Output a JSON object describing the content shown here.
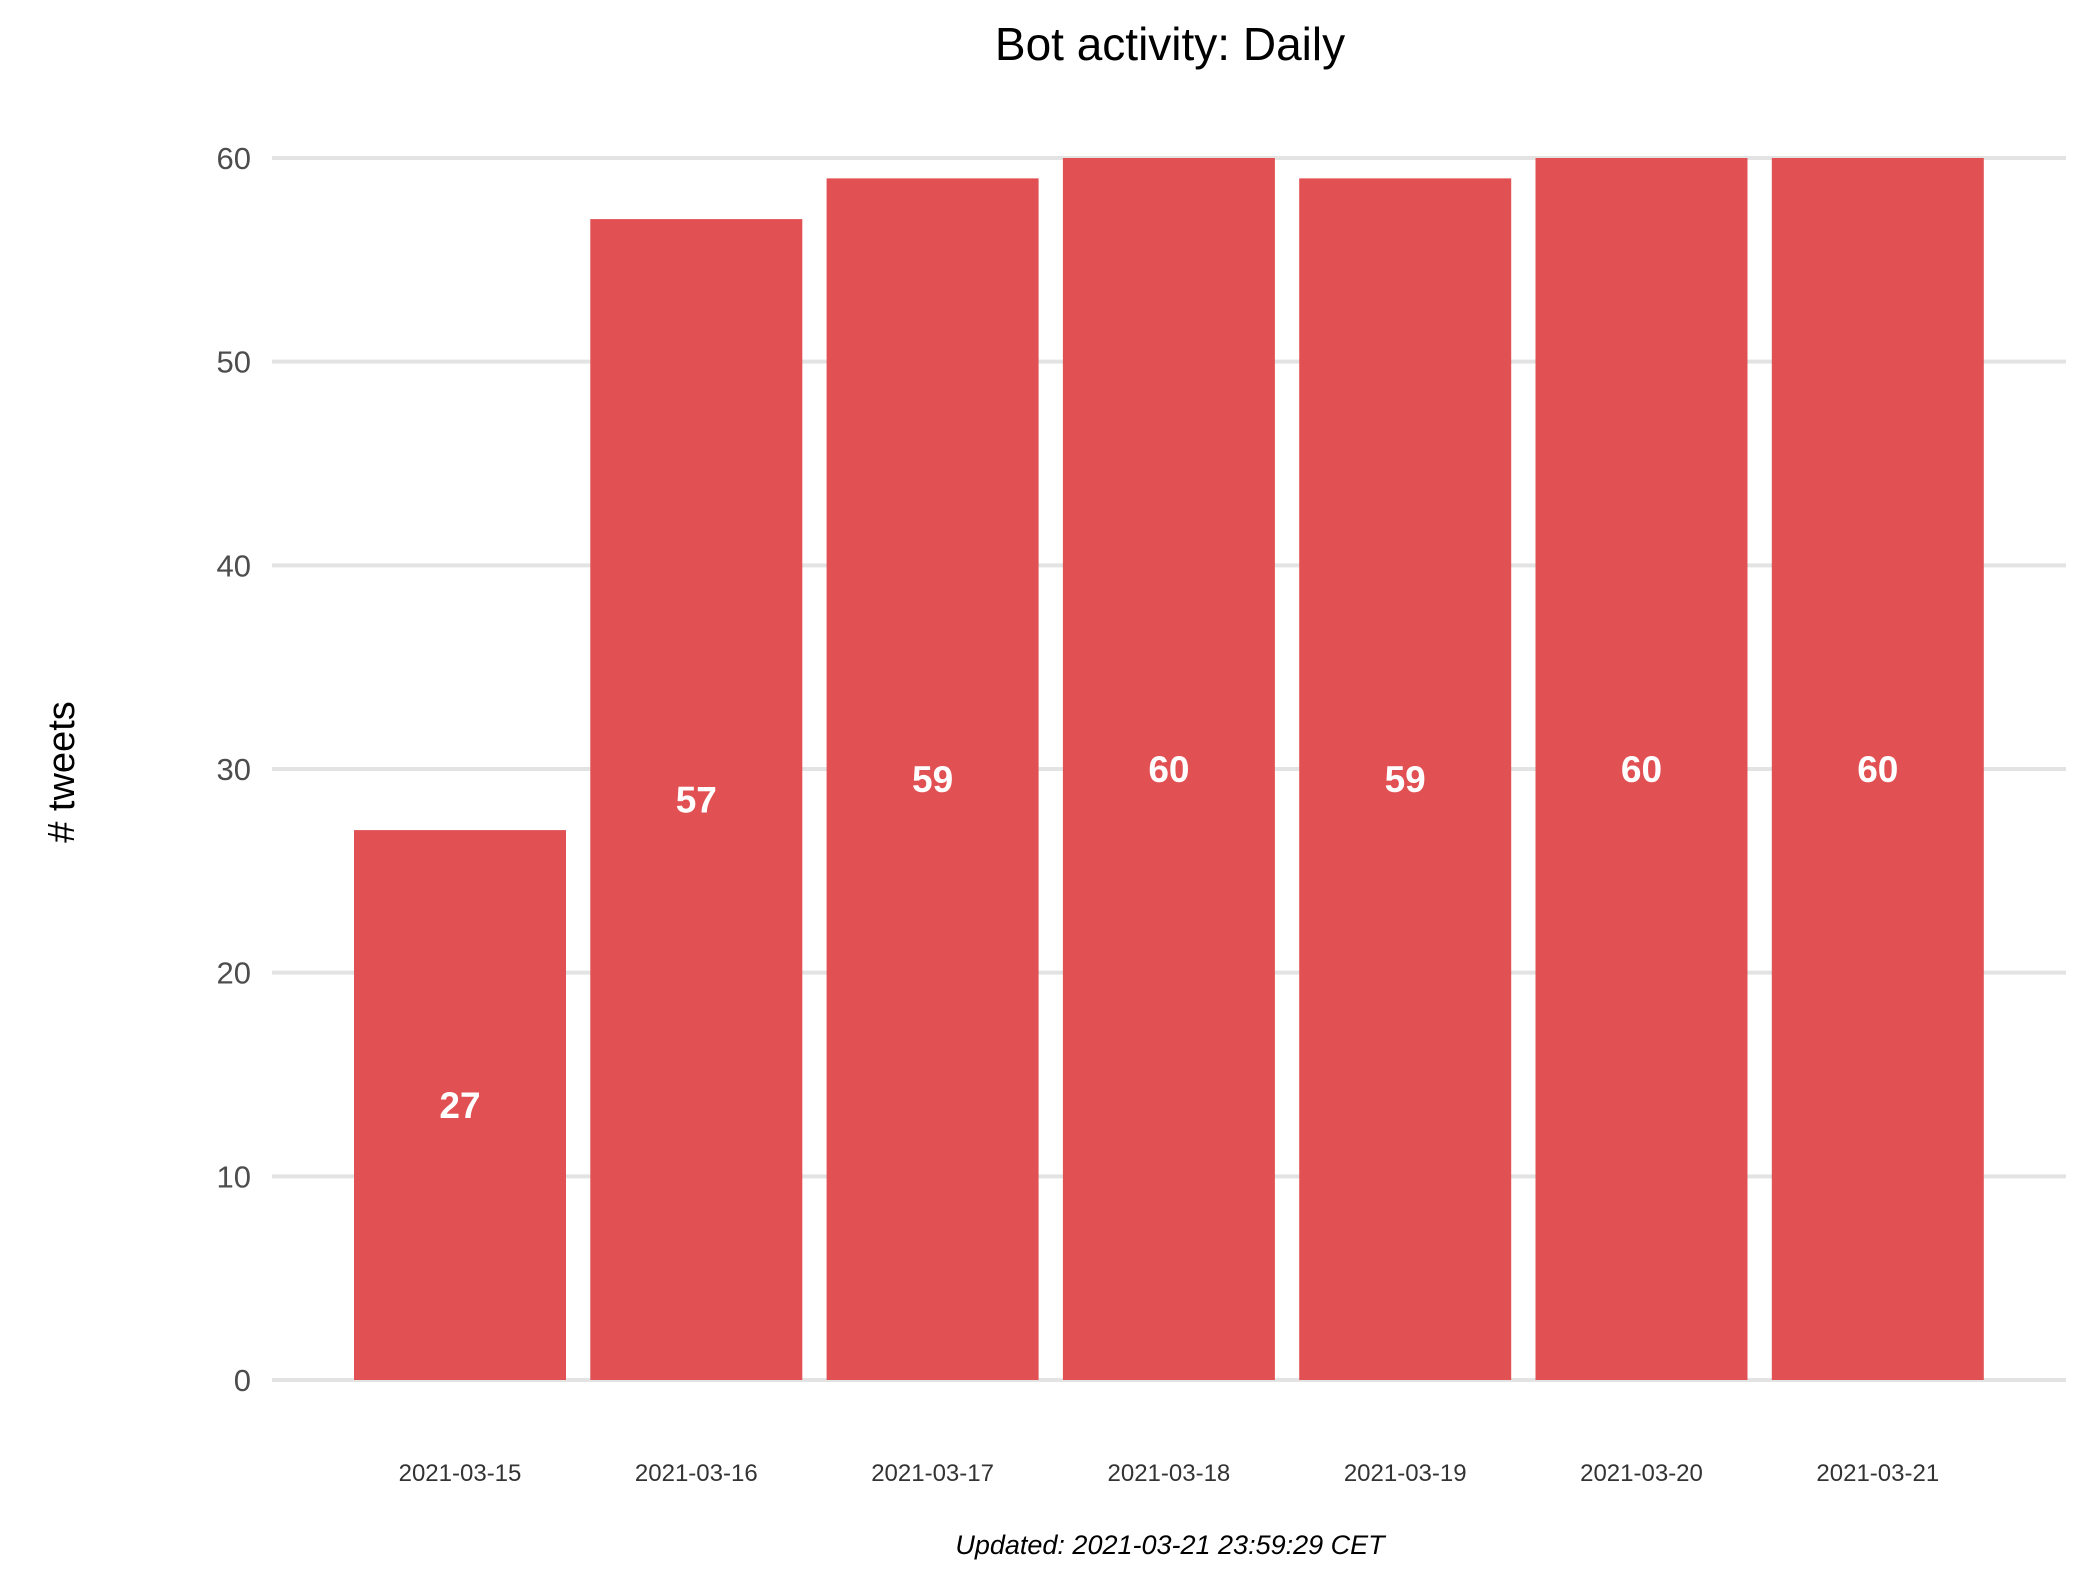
{
  "chart_data": {
    "type": "bar",
    "title": "Bot activity: Daily",
    "xlabel": "",
    "ylabel": "# tweets",
    "caption": "Updated: 2021-03-21 23:59:29 CET",
    "categories": [
      "2021-03-15",
      "2021-03-16",
      "2021-03-17",
      "2021-03-18",
      "2021-03-19",
      "2021-03-20",
      "2021-03-21"
    ],
    "values": [
      27,
      57,
      59,
      60,
      59,
      60,
      60
    ],
    "ylim": [
      0,
      60
    ],
    "yticks": [
      0,
      10,
      20,
      30,
      40,
      50,
      60
    ],
    "grid": "horizontal",
    "legend": "none",
    "data_labels": true,
    "colors": {
      "bar": "#E15153",
      "label": "#FFFFFF",
      "grid": "#E3E3E3"
    }
  }
}
